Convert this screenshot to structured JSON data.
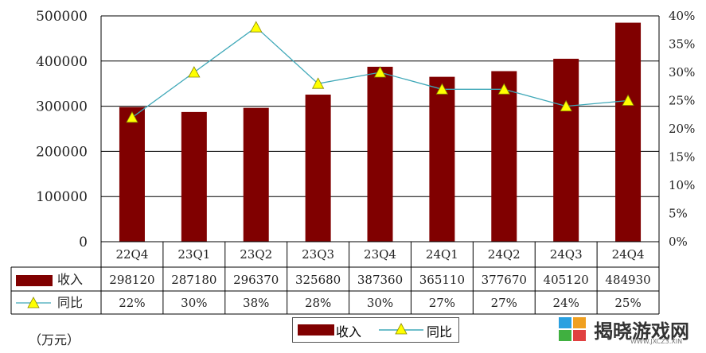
{
  "chart_data": {
    "type": "bar",
    "categories": [
      "22Q4",
      "23Q1",
      "23Q2",
      "23Q3",
      "23Q4",
      "24Q1",
      "24Q2",
      "24Q3",
      "24Q4"
    ],
    "series": [
      {
        "name": "收入",
        "type": "bar",
        "axis": "left",
        "color": "#800000",
        "values": [
          298120,
          287180,
          296370,
          325680,
          387360,
          365110,
          377670,
          405120,
          484930
        ]
      },
      {
        "name": "同比",
        "type": "line",
        "axis": "right",
        "color": "#3fa8b8",
        "marker": "yellow-triangle",
        "values": [
          22,
          30,
          38,
          28,
          30,
          27,
          27,
          24,
          25
        ],
        "labels": [
          "22%",
          "30%",
          "38%",
          "28%",
          "30%",
          "27%",
          "27%",
          "24%",
          "25%"
        ]
      }
    ],
    "ylim": [
      0,
      500000
    ],
    "y_ticks": [
      "500000",
      "400000",
      "300000",
      "200000",
      "100000",
      "0"
    ],
    "y2lim": [
      0,
      40
    ],
    "y2_ticks": [
      "40%",
      "35%",
      "30%",
      "25%",
      "20%",
      "15%",
      "10%",
      "5%",
      "0%"
    ],
    "grid": true,
    "legend": {
      "position": "bottom",
      "entries": [
        "收入",
        "同比"
      ]
    },
    "data_table": true
  },
  "unit_label": "（万元）",
  "watermark": {
    "text": "揭晓游戏网",
    "url": "WWW.JXCZ3.XIN"
  }
}
